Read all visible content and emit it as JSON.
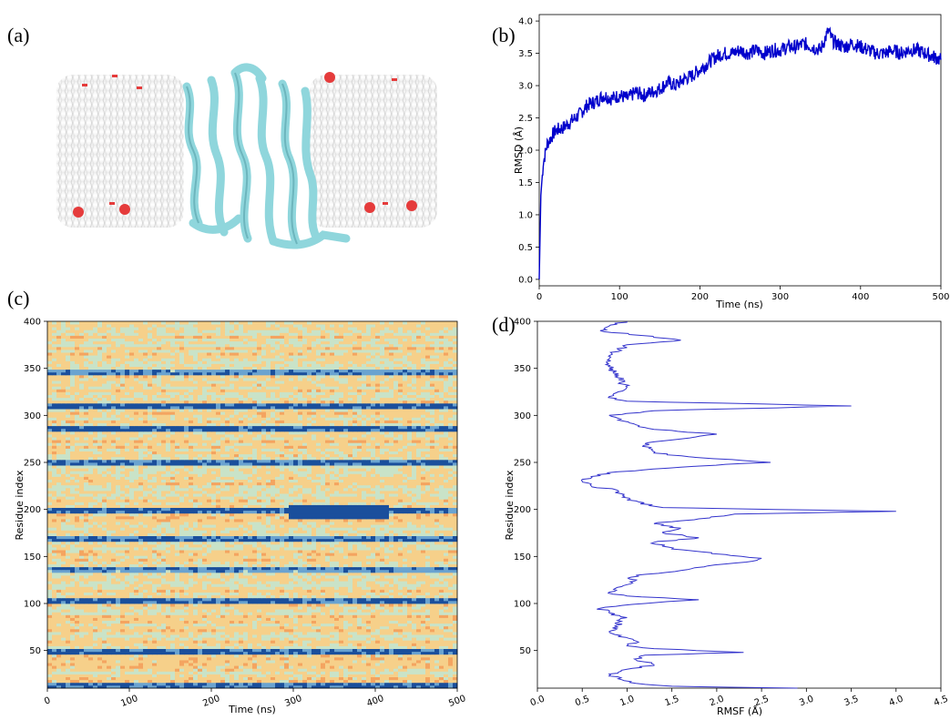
{
  "figure": {
    "panels": [
      {
        "label": "(a)"
      },
      {
        "label": "(b)"
      },
      {
        "label": "(c)"
      },
      {
        "label": "(d)"
      }
    ]
  },
  "chart_data": [
    {
      "panel": "(b)",
      "type": "line",
      "xlabel": "Time (ns)",
      "ylabel": "RMSD (Å)",
      "xlim": [
        0,
        500
      ],
      "ylim": [
        -0.1,
        4.1
      ],
      "x_ticks": [
        "0",
        "100",
        "200",
        "300",
        "400",
        "500"
      ],
      "y_ticks": [
        "0.0",
        "0.5",
        "1.0",
        "1.5",
        "2.0",
        "2.5",
        "3.0",
        "3.5",
        "4.0"
      ],
      "color": "#0000cc",
      "series": [
        {
          "x": [
            0,
            2,
            5,
            10,
            20,
            30,
            40,
            50,
            60,
            70,
            80,
            90,
            100,
            110,
            120,
            130,
            140,
            150,
            160,
            170,
            180,
            190,
            200,
            210,
            220,
            230,
            240,
            250,
            260,
            270,
            280,
            290,
            300,
            310,
            320,
            330,
            340,
            350,
            355,
            360,
            365,
            370,
            380,
            390,
            400,
            410,
            420,
            430,
            440,
            450,
            460,
            470,
            480,
            490,
            500
          ],
          "y": [
            0.0,
            1.3,
            1.8,
            2.1,
            2.3,
            2.35,
            2.45,
            2.55,
            2.7,
            2.75,
            2.85,
            2.8,
            2.85,
            2.8,
            2.9,
            2.85,
            2.9,
            2.95,
            3.05,
            3.0,
            3.1,
            3.15,
            3.25,
            3.35,
            3.45,
            3.5,
            3.5,
            3.55,
            3.5,
            3.55,
            3.5,
            3.55,
            3.55,
            3.6,
            3.6,
            3.65,
            3.6,
            3.55,
            3.7,
            3.85,
            3.7,
            3.65,
            3.6,
            3.65,
            3.6,
            3.55,
            3.5,
            3.5,
            3.55,
            3.5,
            3.55,
            3.55,
            3.5,
            3.45,
            3.4
          ]
        }
      ]
    },
    {
      "panel": "(c)",
      "type": "heatmap",
      "xlabel": "Time (ns)",
      "ylabel": "Residue index",
      "xlim": [
        0,
        500
      ],
      "ylim": [
        10,
        400
      ],
      "x_ticks": [
        "0",
        "100",
        "200",
        "300",
        "400",
        "500"
      ],
      "y_ticks": [
        "50",
        "100",
        "150",
        "200",
        "250",
        "300",
        "350",
        "400"
      ],
      "colormap": [
        "#f4a460",
        "#f6d08a",
        "#c9e3c8",
        "#6aa3d0",
        "#1a4f9c"
      ],
      "low_residue_bands": [
        12,
        48,
        104,
        137,
        168,
        200,
        250,
        285,
        310,
        345
      ]
    },
    {
      "panel": "(d)",
      "type": "line",
      "xlabel": "RMSF (Å)",
      "ylabel": "Residue index",
      "xlim": [
        0,
        4.5
      ],
      "ylim": [
        10,
        400
      ],
      "x_ticks": [
        "0.0",
        "0.5",
        "1.0",
        "1.5",
        "2.0",
        "2.5",
        "3.0",
        "3.5",
        "4.0",
        "4.5"
      ],
      "y_ticks": [
        "50",
        "100",
        "150",
        "200",
        "250",
        "300",
        "350",
        "400"
      ],
      "color": "#3333cc",
      "series": [
        {
          "residue": [
            10,
            12,
            15,
            20,
            25,
            30,
            35,
            40,
            45,
            48,
            52,
            55,
            60,
            65,
            70,
            75,
            80,
            85,
            90,
            95,
            100,
            104,
            108,
            112,
            120,
            130,
            135,
            140,
            145,
            148,
            152,
            158,
            165,
            170,
            175,
            180,
            185,
            190,
            195,
            198,
            202,
            210,
            220,
            225,
            230,
            235,
            240,
            245,
            248,
            250,
            255,
            260,
            270,
            275,
            280,
            285,
            290,
            295,
            300,
            305,
            310,
            315,
            320,
            325,
            330,
            340,
            350,
            360,
            370,
            375,
            380,
            390,
            395,
            400
          ],
          "rmsf": [
            2.9,
            1.5,
            1.1,
            0.9,
            0.8,
            1.0,
            1.3,
            1.1,
            1.2,
            2.3,
            1.3,
            1.0,
            1.1,
            0.9,
            0.8,
            0.9,
            0.9,
            1.0,
            0.8,
            0.7,
            1.2,
            1.8,
            1.0,
            0.8,
            1.0,
            1.1,
            1.6,
            1.9,
            2.4,
            2.5,
            2.1,
            1.5,
            1.3,
            1.8,
            1.4,
            1.6,
            1.3,
            1.8,
            2.2,
            4.0,
            1.4,
            1.0,
            0.9,
            0.6,
            0.5,
            0.6,
            0.9,
            1.6,
            2.1,
            2.6,
            1.8,
            1.3,
            1.2,
            1.6,
            2.0,
            1.3,
            1.1,
            0.9,
            0.8,
            1.3,
            3.5,
            1.0,
            0.8,
            0.9,
            1.0,
            0.9,
            0.8,
            0.8,
            0.9,
            1.0,
            1.6,
            0.7,
            0.8,
            1.0
          ]
        }
      ]
    }
  ]
}
